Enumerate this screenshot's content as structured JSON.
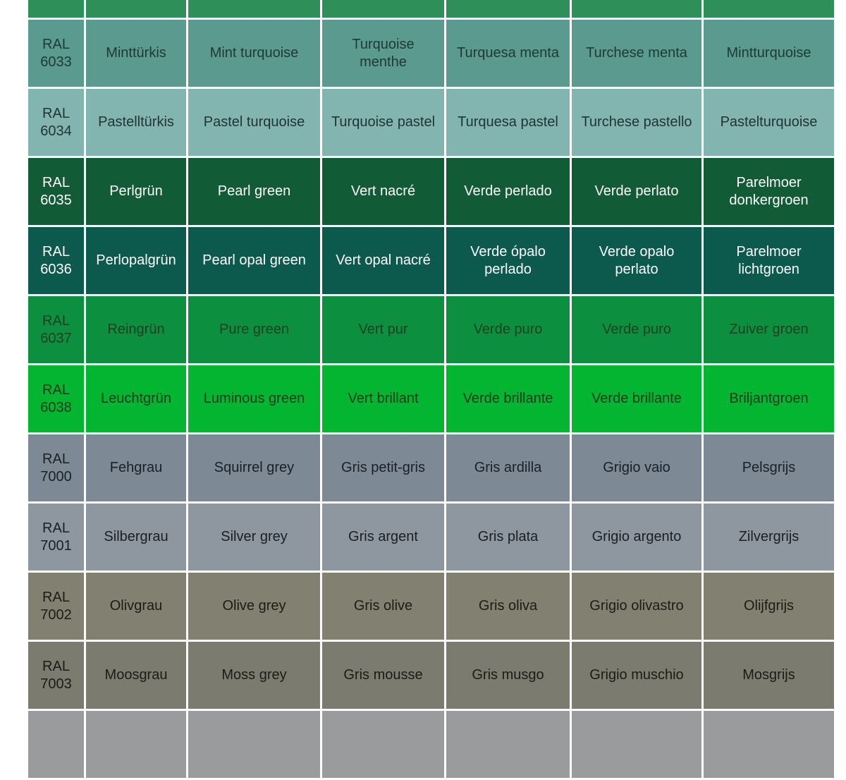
{
  "rows": [
    {
      "partial": true,
      "color": "#2f8f58",
      "text_color": "#ffffff",
      "code": [
        "",
        ""
      ],
      "names": [
        "",
        "",
        "",
        "",
        "",
        ""
      ]
    },
    {
      "color": "#5b9a8e",
      "text_color": "#1d3a35",
      "code": [
        "RAL",
        "6033"
      ],
      "names": [
        "Minttürkis",
        "Mint turquoise",
        "Turquoise\nmenthe",
        "Turquesa menta",
        "Turchese menta",
        "Mintturquoise"
      ]
    },
    {
      "color": "#82b4b0",
      "text_color": "#1f3433",
      "code": [
        "RAL",
        "6034"
      ],
      "names": [
        "Pastelltürkis",
        "Pastel turquoise",
        "Turquoise pastel",
        "Turquesa pastel",
        "Turchese pastello",
        "Pastelturquoise"
      ]
    },
    {
      "color": "#125b37",
      "text_color": "#ffffff",
      "code": [
        "RAL",
        "6035"
      ],
      "names": [
        "Perlgrün",
        "Pearl green",
        "Vert nacré",
        "Verde perlado",
        "Verde perlato",
        "Parelmoer\ndonkergroen"
      ]
    },
    {
      "color": "#0c5a4d",
      "text_color": "#ffffff",
      "code": [
        "RAL",
        "6036"
      ],
      "names": [
        "Perlopalgrün",
        "Pearl opal green",
        "Vert opal nacré",
        "Verde ópalo\nperlado",
        "Verde opalo\nperlato",
        "Parelmoer\nlichtgroen"
      ]
    },
    {
      "color": "#0c9040",
      "text_color": "#1b3f22",
      "code": [
        "RAL",
        "6037"
      ],
      "names": [
        "Reingrün",
        "Pure green",
        "Vert pur",
        "Verde puro",
        "Verde puro",
        "Zuiver groen"
      ]
    },
    {
      "color": "#04b531",
      "text_color": "#173a1c",
      "code": [
        "RAL",
        "6038"
      ],
      "names": [
        "Leuchtgrün",
        "Luminous green",
        "Vert brillant",
        "Verde brillante",
        "Verde brillante",
        "Briljantgroen"
      ]
    },
    {
      "color": "#7d8a96",
      "text_color": "#1a1f25",
      "code": [
        "RAL",
        "7000"
      ],
      "names": [
        "Fehgrau",
        "Squirrel grey",
        "Gris petit-gris",
        "Gris ardilla",
        "Grigio vaio",
        "Pelsgrijs"
      ]
    },
    {
      "color": "#8e969f",
      "text_color": "#1a1f25",
      "code": [
        "RAL",
        "7001"
      ],
      "names": [
        "Silbergrau",
        "Silver grey",
        "Gris argent",
        "Gris plata",
        "Grigio argento",
        "Zilvergrijs"
      ]
    },
    {
      "color": "#828070",
      "text_color": "#1c1c17",
      "code": [
        "RAL",
        "7002"
      ],
      "names": [
        "Olivgrau",
        "Olive grey",
        "Gris olive",
        "Gris oliva",
        "Grigio olivastro",
        "Olijfgrijs"
      ]
    },
    {
      "color": "#7b7b70",
      "text_color": "#1c1c17",
      "code": [
        "RAL",
        "7003"
      ],
      "names": [
        "Moosgrau",
        "Moss grey",
        "Gris mousse",
        "Gris musgo",
        "Grigio muschio",
        "Mosgrijs"
      ]
    },
    {
      "partial": true,
      "color": "#9a9b9d",
      "text_color": "#1a1a1a",
      "code": [
        "",
        ""
      ],
      "names": [
        "",
        "",
        "",
        "",
        "",
        ""
      ]
    }
  ]
}
